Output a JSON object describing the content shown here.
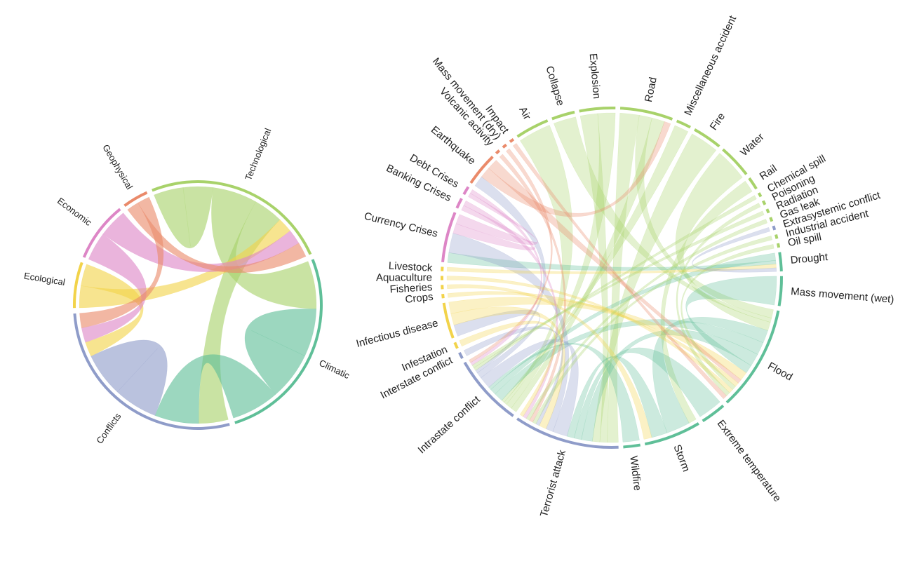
{
  "diagrams": [
    {
      "id": "categories",
      "groups": [
        {
          "label": "Technological",
          "color": "#a8d26a"
        },
        {
          "label": "Climatic",
          "color": "#5fbf98"
        },
        {
          "label": "Conflicts",
          "color": "#8f9cc9"
        },
        {
          "label": "Ecological",
          "color": "#f2d34a"
        },
        {
          "label": "Economic",
          "color": "#dd86c6"
        },
        {
          "label": "Geophysical",
          "color": "#ea8a6a"
        }
      ],
      "chords": [
        {
          "a": "Technological",
          "b": "Technological",
          "w": 2
        },
        {
          "a": "Technological",
          "b": "Climatic",
          "w": 3
        },
        {
          "a": "Technological",
          "b": "Conflicts",
          "w": 2
        },
        {
          "a": "Climatic",
          "b": "Climatic",
          "w": 3
        },
        {
          "a": "Climatic",
          "b": "Conflicts",
          "w": 3
        },
        {
          "a": "Conflicts",
          "b": "Conflicts",
          "w": 3
        },
        {
          "a": "Ecological",
          "b": "Technological",
          "w": 1
        },
        {
          "a": "Ecological",
          "b": "Conflicts",
          "w": 1
        },
        {
          "a": "Economic",
          "b": "Conflicts",
          "w": 1
        },
        {
          "a": "Economic",
          "b": "Technological",
          "w": 1
        },
        {
          "a": "Geophysical",
          "b": "Technological",
          "w": 1
        },
        {
          "a": "Geophysical",
          "b": "Conflicts",
          "w": 1
        }
      ]
    },
    {
      "id": "subcategories",
      "groups": [
        {
          "label": "Air",
          "color": "#a8d26a"
        },
        {
          "label": "Collapse",
          "color": "#a8d26a"
        },
        {
          "label": "Explosion",
          "color": "#a8d26a"
        },
        {
          "label": "Road",
          "color": "#a8d26a"
        },
        {
          "label": "Miscellaneous accident",
          "color": "#a8d26a"
        },
        {
          "label": "Fire",
          "color": "#a8d26a"
        },
        {
          "label": "Water",
          "color": "#a8d26a"
        },
        {
          "label": "Rail",
          "color": "#a8d26a"
        },
        {
          "label": "Chemical spill",
          "color": "#a8d26a"
        },
        {
          "label": "Poisoning",
          "color": "#a8d26a"
        },
        {
          "label": "Radiation",
          "color": "#a8d26a"
        },
        {
          "label": "Gas leak",
          "color": "#a8d26a"
        },
        {
          "label": "Extrasystemic conflict",
          "color": "#8f9cc9"
        },
        {
          "label": "Industrial accident",
          "color": "#a8d26a"
        },
        {
          "label": "Oil spill",
          "color": "#a8d26a"
        },
        {
          "label": "Drought",
          "color": "#5fbf98"
        },
        {
          "label": "Mass movement (wet)",
          "color": "#5fbf98"
        },
        {
          "label": "Flood",
          "color": "#5fbf98"
        },
        {
          "label": "Extreme temperature",
          "color": "#5fbf98"
        },
        {
          "label": "Storm",
          "color": "#5fbf98"
        },
        {
          "label": "Wildfire",
          "color": "#5fbf98"
        },
        {
          "label": "Terrorist attack",
          "color": "#8f9cc9"
        },
        {
          "label": "Intrastate conflict",
          "color": "#8f9cc9"
        },
        {
          "label": "Interstate conflict",
          "color": "#8f9cc9"
        },
        {
          "label": "Infestation",
          "color": "#f2d34a"
        },
        {
          "label": "Infectious disease",
          "color": "#f2d34a"
        },
        {
          "label": "Crops",
          "color": "#f2d34a"
        },
        {
          "label": "Fisheries",
          "color": "#f2d34a"
        },
        {
          "label": "Aquaculture",
          "color": "#f2d34a"
        },
        {
          "label": "Livestock",
          "color": "#f2d34a"
        },
        {
          "label": "Currency Crises",
          "color": "#dd86c6"
        },
        {
          "label": "Banking Crises",
          "color": "#dd86c6"
        },
        {
          "label": "Debt Crises",
          "color": "#dd86c6"
        },
        {
          "label": "Earthquake",
          "color": "#ea8a6a"
        },
        {
          "label": "Volcanic activity",
          "color": "#ea8a6a"
        },
        {
          "label": "Mass movement (dry)",
          "color": "#ea8a6a"
        },
        {
          "label": "Impact",
          "color": "#ea8a6a"
        }
      ],
      "chords": [
        {
          "a": "Road",
          "b": "Terrorist attack",
          "w": 3
        },
        {
          "a": "Road",
          "b": "Flood",
          "w": 2
        },
        {
          "a": "Road",
          "b": "Intrastate conflict",
          "w": 2
        },
        {
          "a": "Explosion",
          "b": "Terrorist attack",
          "w": 2
        },
        {
          "a": "Explosion",
          "b": "Intrastate conflict",
          "w": 2
        },
        {
          "a": "Collapse",
          "b": "Flood",
          "w": 1
        },
        {
          "a": "Air",
          "b": "Intrastate conflict",
          "w": 1
        },
        {
          "a": "Fire",
          "b": "Terrorist attack",
          "w": 2
        },
        {
          "a": "Water",
          "b": "Flood",
          "w": 2
        },
        {
          "a": "Rail",
          "b": "Storm",
          "w": 1
        },
        {
          "a": "Miscellaneous accident",
          "b": "Intrastate conflict",
          "w": 1
        },
        {
          "a": "Flood",
          "b": "Storm",
          "w": 3
        },
        {
          "a": "Flood",
          "b": "Intrastate conflict",
          "w": 3
        },
        {
          "a": "Flood",
          "b": "Terrorist attack",
          "w": 3
        },
        {
          "a": "Flood",
          "b": "Mass movement (wet)",
          "w": 2
        },
        {
          "a": "Drought",
          "b": "Intrastate conflict",
          "w": 2
        },
        {
          "a": "Drought",
          "b": "Currency Crises",
          "w": 1
        },
        {
          "a": "Extreme temperature",
          "b": "Terrorist attack",
          "w": 2
        },
        {
          "a": "Storm",
          "b": "Terrorist attack",
          "w": 2
        },
        {
          "a": "Wildfire",
          "b": "Intrastate conflict",
          "w": 1
        },
        {
          "a": "Terrorist attack",
          "b": "Intrastate conflict",
          "w": 4
        },
        {
          "a": "Terrorist attack",
          "b": "Currency Crises",
          "w": 2
        },
        {
          "a": "Intrastate conflict",
          "b": "Infectious disease",
          "w": 2
        },
        {
          "a": "Intrastate conflict",
          "b": "Earthquake",
          "w": 1
        },
        {
          "a": "Currency Crises",
          "b": "Banking Crises",
          "w": 1
        },
        {
          "a": "Currency Crises",
          "b": "Debt Crises",
          "w": 1
        },
        {
          "a": "Infectious disease",
          "b": "Terrorist attack",
          "w": 2
        },
        {
          "a": "Infectious disease",
          "b": "Flood",
          "w": 2
        },
        {
          "a": "Earthquake",
          "b": "Road",
          "w": 1
        },
        {
          "a": "Earthquake",
          "b": "Flood",
          "w": 1
        },
        {
          "a": "Crops",
          "b": "Flood",
          "w": 1
        },
        {
          "a": "Interstate conflict",
          "b": "Terrorist attack",
          "w": 1
        },
        {
          "a": "Chemical spill",
          "b": "Intrastate conflict",
          "w": 1
        },
        {
          "a": "Industrial accident",
          "b": "Terrorist attack",
          "w": 1
        },
        {
          "a": "Oil spill",
          "b": "Flood",
          "w": 1
        },
        {
          "a": "Livestock",
          "b": "Drought",
          "w": 1
        },
        {
          "a": "Aquaculture",
          "b": "Flood",
          "w": 1
        },
        {
          "a": "Fisheries",
          "b": "Storm",
          "w": 1
        },
        {
          "a": "Volcanic activity",
          "b": "Terrorist attack",
          "w": 1
        },
        {
          "a": "Poisoning",
          "b": "Flood",
          "w": 1
        },
        {
          "a": "Radiation",
          "b": "Intrastate conflict",
          "w": 1
        },
        {
          "a": "Gas leak",
          "b": "Terrorist attack",
          "w": 1
        },
        {
          "a": "Extrasystemic conflict",
          "b": "Drought",
          "w": 1
        },
        {
          "a": "Debt Crises",
          "b": "Intrastate conflict",
          "w": 1
        },
        {
          "a": "Banking Crises",
          "b": "Terrorist attack",
          "w": 1
        },
        {
          "a": "Impact",
          "b": "Flood",
          "w": 1
        },
        {
          "a": "Mass movement (dry)",
          "b": "Intrastate conflict",
          "w": 1
        },
        {
          "a": "Infestation",
          "b": "Terrorist attack",
          "w": 1
        }
      ]
    }
  ]
}
